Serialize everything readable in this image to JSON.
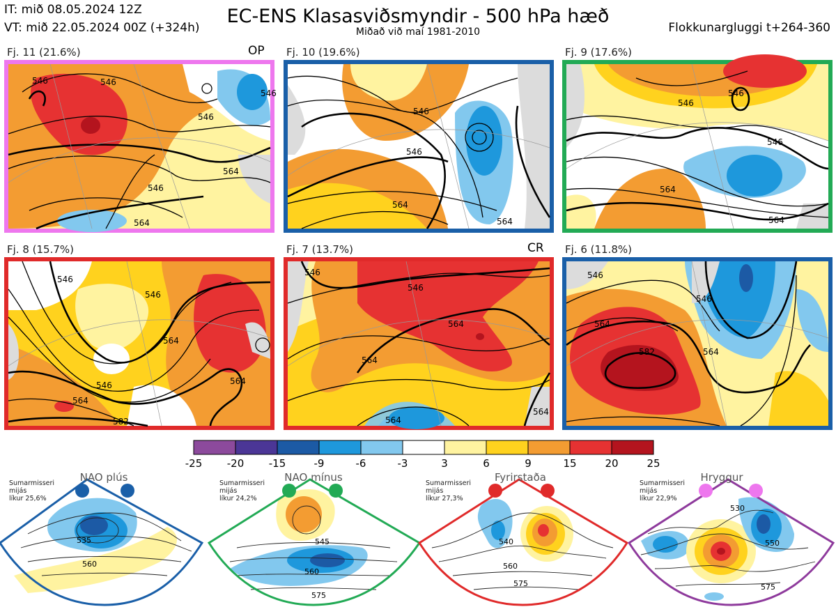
{
  "header": {
    "it_line": "IT: mið 08.05.2024 12Z",
    "vt_line": "VT: mið 22.05.2024 00Z  (+324h)",
    "title": "EC-ENS Klasasviðsmyndir - 500 hPa hæð",
    "subtitle": "Miðað við maí 1981-2010",
    "window": "Flokkunargluggi t+264-360"
  },
  "panels": [
    {
      "label": "Fj. 11 (21.6%)",
      "tag": "OP",
      "border": "#ee77ee",
      "contours": [
        "546",
        "546",
        "546",
        "564",
        "546",
        "546",
        "564"
      ]
    },
    {
      "label": "Fj. 10 (19.6%)",
      "tag": "",
      "border": "#1a5fa8",
      "contours": [
        "546",
        "546",
        "564",
        "564"
      ]
    },
    {
      "label": "Fj. 9 (17.6%)",
      "tag": "",
      "border": "#22aa55",
      "contours": [
        "546",
        "546",
        "546",
        "564",
        "564"
      ]
    },
    {
      "label": "Fj. 8 (15.7%)",
      "tag": "",
      "border": "#e02a2a",
      "contours": [
        "546",
        "546",
        "546",
        "564",
        "564",
        "564",
        "582"
      ]
    },
    {
      "label": "Fj. 7 (13.7%)",
      "tag": "CR",
      "border": "#e02a2a",
      "contours": [
        "546",
        "546",
        "564",
        "564",
        "564",
        "564"
      ]
    },
    {
      "label": "Fj. 6 (11.8%)",
      "tag": "",
      "border": "#1a5fa8",
      "contours": [
        "546",
        "546",
        "564",
        "582",
        "564"
      ]
    }
  ],
  "colorbar": {
    "colors": [
      "#8c4a9c",
      "#4b3696",
      "#1c5aa5",
      "#1e98dc",
      "#82c8ee",
      "#ffffff",
      "#fff3a0",
      "#ffd21e",
      "#f39c32",
      "#e63232",
      "#b4141e"
    ],
    "ticks": [
      "-25",
      "-20",
      "-15",
      "-9",
      "-6",
      "-3",
      "3",
      "6",
      "9",
      "15",
      "20",
      "25"
    ]
  },
  "regimes": [
    {
      "name": "NAO plús",
      "note": [
        "Sumarmisseri",
        "mijás",
        "líkur 25,6%"
      ],
      "color": "#1a5fa8",
      "contours": [
        "535",
        "560"
      ]
    },
    {
      "name": "NAO mínus",
      "note": [
        "Sumarmisseri",
        "mijás",
        "líkur 24,2%"
      ],
      "color": "#22aa55",
      "contours": [
        "545",
        "560",
        "575"
      ]
    },
    {
      "name": "Fyrirstaða",
      "note": [
        "Sumarmisseri",
        "mijás",
        "líkur 27,3%"
      ],
      "color": "#e02a2a",
      "contours": [
        "540",
        "560",
        "575"
      ]
    },
    {
      "name": "Hryggur",
      "note": [
        "Sumarmisseri",
        "mijás",
        "líkur 22,9%"
      ],
      "color": "#8e3a9c",
      "contours": [
        "530",
        "550",
        "575"
      ]
    }
  ]
}
